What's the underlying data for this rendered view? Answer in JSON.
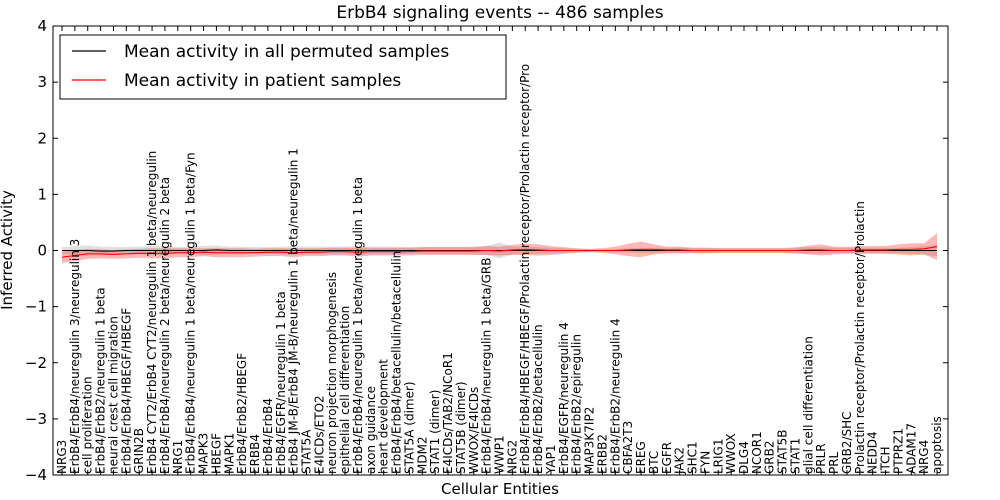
{
  "chart_data": {
    "type": "line",
    "title": "ErbB4 signaling events -- 486 samples",
    "xlabel": "Cellular Entities",
    "ylabel": "Inferred Activity",
    "ylim": [
      -4,
      4
    ],
    "yticks": [
      -4,
      -3,
      -2,
      -1,
      0,
      1,
      2,
      3,
      4
    ],
    "grid": false,
    "legend_position": "top-left",
    "categories": [
      "NRG3",
      "ErbB4/ErbB4/neuregulin 3/neuregulin 3",
      "cell proliferation",
      "ErbB4/ErbB2/neuregulin 1 beta",
      "neural crest cell migration",
      "ErbB4/ErbB4/HBEGF/HBEGF",
      "GRIN2B",
      "ErbB4 CYT2/ErbB4 CYT2/neuregulin 1 beta/neuregulin",
      "ErbB4/ErbB4/neuregulin 2 beta/neuregulin 2 beta",
      "NRG1",
      "ErbB4/ErbB4/neuregulin 1 beta/neuregulin 1 beta/Fyn",
      "MAPK3",
      "HBEGF",
      "MAPK1",
      "ErbB4/ErbB2/HBEGF",
      "ERBB4",
      "ErbB4/ErbB4",
      "ErbB4/EGFR/neuregulin 1 beta",
      "ErbB4 JM-B/ErbB4 JM-B/neuregulin 1 beta/neuregulin 1",
      "STAT5A",
      "E4ICDs/ETO2",
      "neuron projection morphogenesis",
      "epithelial cell differentiation",
      "ErbB4/ErbB4/neuregulin 1 beta/neuregulin 1 beta",
      "axon guidance",
      "heart development",
      "ErbB4/ErbB4/betacellulin/betacellulin",
      "STAT5A (dimer)",
      "MDM2",
      "STAT1 (dimer)",
      "E4ICDs/TAB2/NCoR1",
      "STAT5B (dimer)",
      "WWOX/E4ICDs",
      "ErbB4/ErbB4/neuregulin 1 beta/GRB",
      "WWP1",
      "NRG2",
      "ErbB4/ErbB4/HBEGF/HBEGF/Prolactin receptor/Prolactin receptor/Pro",
      "ErbB4/ErbB2/betacellulin",
      "YAP1",
      "ErbB4/EGFR/neuregulin 4",
      "ErbB4/ErbB2/epiregulin",
      "MAP3K7IP2",
      "ERBB2",
      "ErbB4/ErbB2/neuregulin 4",
      "CBFA2T3",
      "EREG",
      "BTC",
      "EGFR",
      "JAK2",
      "SHC1",
      "FYN",
      "LRIG1",
      "WWOX",
      "DLG4",
      "NCOR1",
      "GRB2",
      "STAT5B",
      "STAT1",
      "glial cell differentiation",
      "PRLR",
      "PRL",
      "GRB2/SHC",
      "Prolactin receptor/Prolactin receptor/Prolactin",
      "NEDD4",
      "ITCH",
      "PTPRZ1",
      "ADAM17",
      "NRG4",
      "apoptosis"
    ],
    "series": [
      {
        "name": "Mean activity in all permuted samples",
        "color": "#000000",
        "values": [
          0.0,
          0.0,
          0.0,
          -0.01,
          -0.01,
          0.0,
          0.0,
          0.0,
          0.0,
          0.0,
          0.0,
          0.0,
          0.01,
          0.0,
          0.0,
          0.0,
          0.0,
          0.0,
          0.0,
          0.0,
          0.0,
          0.0,
          0.0,
          0.0,
          0.0,
          0.0,
          0.0,
          0.0,
          0.0,
          0.0,
          0.0,
          0.0,
          0.0,
          0.0,
          0.0,
          0.0,
          0.0,
          0.0,
          0.0,
          0.0,
          0.0,
          0.0,
          0.0,
          0.0,
          0.0,
          0.0,
          0.0,
          0.0,
          0.0,
          0.0,
          0.0,
          0.0,
          0.0,
          0.0,
          0.0,
          0.0,
          0.0,
          0.0,
          0.0,
          0.0,
          0.0,
          0.0,
          0.0,
          0.0,
          0.0,
          0.0,
          0.0,
          0.0,
          0.0
        ],
        "band": [
          0.06,
          0.08,
          0.09,
          0.08,
          0.07,
          0.06,
          0.07,
          0.08,
          0.08,
          0.06,
          0.07,
          0.08,
          0.08,
          0.07,
          0.07,
          0.06,
          0.06,
          0.07,
          0.08,
          0.07,
          0.07,
          0.07,
          0.07,
          0.08,
          0.07,
          0.07,
          0.07,
          0.06,
          0.06,
          0.06,
          0.06,
          0.06,
          0.07,
          0.08,
          0.14,
          0.07,
          0.07,
          0.06,
          0.05,
          0.04,
          0.03,
          0.03,
          0.03,
          0.03,
          0.04,
          0.05,
          0.05,
          0.05,
          0.05,
          0.05,
          0.05,
          0.05,
          0.05,
          0.05,
          0.05,
          0.05,
          0.05,
          0.06,
          0.06,
          0.06,
          0.05,
          0.05,
          0.05,
          0.05,
          0.05,
          0.05,
          0.06,
          0.08,
          0.1
        ]
      },
      {
        "name": "Mean activity in patient samples",
        "color": "#ff0000",
        "values": [
          -0.12,
          -0.09,
          -0.06,
          -0.06,
          -0.07,
          -0.06,
          -0.05,
          -0.05,
          -0.05,
          -0.04,
          -0.04,
          -0.03,
          -0.04,
          -0.04,
          -0.04,
          -0.04,
          -0.03,
          -0.03,
          -0.04,
          -0.03,
          -0.03,
          -0.02,
          -0.02,
          -0.03,
          -0.02,
          -0.02,
          -0.02,
          -0.02,
          -0.01,
          -0.01,
          -0.01,
          -0.01,
          -0.01,
          0.0,
          -0.01,
          0.01,
          0.02,
          0.01,
          0.0,
          0.0,
          0.0,
          0.0,
          0.0,
          0.0,
          0.01,
          0.02,
          0.02,
          0.01,
          0.01,
          0.0,
          0.0,
          0.0,
          0.0,
          0.0,
          0.0,
          0.0,
          0.0,
          0.0,
          0.01,
          0.01,
          0.0,
          0.0,
          0.01,
          0.01,
          0.01,
          0.02,
          0.02,
          0.03,
          0.07
        ],
        "band": [
          0.1,
          0.1,
          0.09,
          0.08,
          0.08,
          0.08,
          0.08,
          0.09,
          0.09,
          0.08,
          0.08,
          0.07,
          0.08,
          0.08,
          0.08,
          0.07,
          0.07,
          0.07,
          0.08,
          0.07,
          0.07,
          0.07,
          0.07,
          0.08,
          0.07,
          0.07,
          0.07,
          0.07,
          0.07,
          0.07,
          0.07,
          0.07,
          0.07,
          0.08,
          0.08,
          0.09,
          0.1,
          0.1,
          0.08,
          0.06,
          0.04,
          0.03,
          0.04,
          0.07,
          0.11,
          0.14,
          0.09,
          0.06,
          0.06,
          0.05,
          0.05,
          0.04,
          0.04,
          0.04,
          0.04,
          0.04,
          0.04,
          0.05,
          0.08,
          0.1,
          0.07,
          0.06,
          0.07,
          0.07,
          0.07,
          0.09,
          0.11,
          0.1,
          0.24
        ]
      }
    ]
  }
}
